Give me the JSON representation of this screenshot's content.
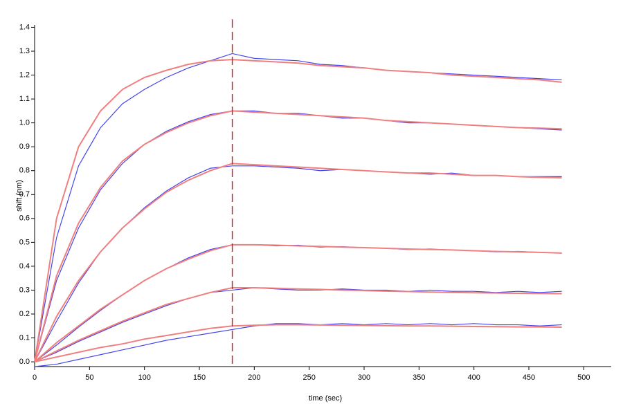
{
  "chart_data": {
    "type": "line",
    "x_label": "time (sec)",
    "y_label": "shift (nm)",
    "x": [
      0,
      20,
      40,
      60,
      80,
      100,
      120,
      140,
      160,
      180,
      200,
      220,
      240,
      260,
      280,
      300,
      320,
      340,
      360,
      380,
      400,
      420,
      440,
      460,
      480
    ],
    "xlim": [
      0,
      525
    ],
    "xticks": [
      0,
      50,
      100,
      150,
      200,
      250,
      300,
      350,
      400,
      450,
      500
    ],
    "ylim": [
      -0.02,
      1.41
    ],
    "yticks": [
      {
        "value": 0,
        "label": "0.0"
      },
      0.1,
      0.2,
      0.3,
      0.4,
      0.5,
      0.6,
      0.7,
      0.8,
      0.9,
      {
        "value": 1,
        "label": "1.0"
      },
      1.1,
      1.2,
      1.3,
      1.4
    ],
    "vline": 180,
    "vline_color": "#cc2222",
    "series": [
      {
        "color": "#4444ee",
        "values": [
          0,
          0.52,
          0.82,
          0.98,
          1.08,
          1.14,
          1.19,
          1.23,
          1.26,
          1.29,
          1.27,
          1.265,
          1.26,
          1.245,
          1.24,
          1.23,
          1.22,
          1.215,
          1.21,
          1.205,
          1.2,
          1.195,
          1.19,
          1.185,
          1.18
        ]
      },
      {
        "color": "#f08080",
        "values": [
          0,
          0.6,
          0.9,
          1.05,
          1.14,
          1.19,
          1.22,
          1.245,
          1.26,
          1.265,
          1.26,
          1.255,
          1.25,
          1.24,
          1.235,
          1.23,
          1.22,
          1.215,
          1.21,
          1.2,
          1.195,
          1.19,
          1.185,
          1.18,
          1.17
        ]
      },
      {
        "color": "#4444ee",
        "values": [
          0,
          0.34,
          0.56,
          0.72,
          0.83,
          0.91,
          0.965,
          1.005,
          1.035,
          1.05,
          1.05,
          1.04,
          1.04,
          1.03,
          1.02,
          1.02,
          1.01,
          1,
          1,
          0.995,
          0.99,
          0.985,
          0.98,
          0.975,
          0.97
        ]
      },
      {
        "color": "#f08080",
        "values": [
          0,
          0.36,
          0.58,
          0.73,
          0.84,
          0.91,
          0.96,
          1,
          1.03,
          1.05,
          1.045,
          1.04,
          1.035,
          1.03,
          1.025,
          1.02,
          1.01,
          1.005,
          1,
          0.995,
          0.99,
          0.985,
          0.98,
          0.978,
          0.975
        ]
      },
      {
        "color": "#4444ee",
        "values": [
          0,
          0.17,
          0.33,
          0.46,
          0.56,
          0.645,
          0.715,
          0.77,
          0.81,
          0.82,
          0.82,
          0.815,
          0.81,
          0.8,
          0.805,
          0.8,
          0.795,
          0.79,
          0.785,
          0.79,
          0.78,
          0.78,
          0.775,
          0.775,
          0.775
        ]
      },
      {
        "color": "#f08080",
        "values": [
          0,
          0.19,
          0.34,
          0.46,
          0.56,
          0.64,
          0.71,
          0.76,
          0.8,
          0.83,
          0.825,
          0.82,
          0.815,
          0.81,
          0.805,
          0.8,
          0.795,
          0.79,
          0.79,
          0.785,
          0.78,
          0.78,
          0.775,
          0.772,
          0.77
        ]
      },
      {
        "color": "#4444ee",
        "values": [
          0,
          0.07,
          0.145,
          0.215,
          0.28,
          0.34,
          0.39,
          0.435,
          0.47,
          0.49,
          0.49,
          0.485,
          0.488,
          0.48,
          0.482,
          0.478,
          0.475,
          0.47,
          0.472,
          0.468,
          0.465,
          0.46,
          0.462,
          0.458,
          0.455
        ]
      },
      {
        "color": "#f08080",
        "values": [
          0,
          0.08,
          0.15,
          0.22,
          0.28,
          0.34,
          0.39,
          0.43,
          0.465,
          0.49,
          0.49,
          0.488,
          0.485,
          0.483,
          0.48,
          0.478,
          0.475,
          0.472,
          0.47,
          0.468,
          0.465,
          0.462,
          0.46,
          0.458,
          0.455
        ]
      },
      {
        "color": "#4444ee",
        "values": [
          0,
          0.04,
          0.085,
          0.125,
          0.165,
          0.2,
          0.235,
          0.265,
          0.29,
          0.3,
          0.31,
          0.305,
          0.3,
          0.3,
          0.305,
          0.3,
          0.3,
          0.295,
          0.3,
          0.295,
          0.295,
          0.29,
          0.295,
          0.29,
          0.295
        ]
      },
      {
        "color": "#f08080",
        "values": [
          0,
          0.045,
          0.09,
          0.13,
          0.17,
          0.205,
          0.24,
          0.265,
          0.29,
          0.31,
          0.31,
          0.308,
          0.305,
          0.303,
          0.3,
          0.298,
          0.296,
          0.294,
          0.292,
          0.29,
          0.289,
          0.288,
          0.287,
          0.286,
          0.285
        ]
      },
      {
        "color": "#4444ee",
        "values": [
          -0.02,
          -0.01,
          0.01,
          0.03,
          0.05,
          0.07,
          0.09,
          0.105,
          0.12,
          0.135,
          0.15,
          0.16,
          0.16,
          0.155,
          0.16,
          0.155,
          0.16,
          0.155,
          0.16,
          0.155,
          0.16,
          0.155,
          0.155,
          0.15,
          0.155
        ]
      },
      {
        "color": "#f08080",
        "values": [
          0,
          0.02,
          0.04,
          0.06,
          0.075,
          0.095,
          0.11,
          0.125,
          0.14,
          0.15,
          0.153,
          0.155,
          0.155,
          0.154,
          0.153,
          0.152,
          0.151,
          0.15,
          0.15,
          0.149,
          0.148,
          0.147,
          0.146,
          0.146,
          0.145
        ]
      }
    ]
  }
}
